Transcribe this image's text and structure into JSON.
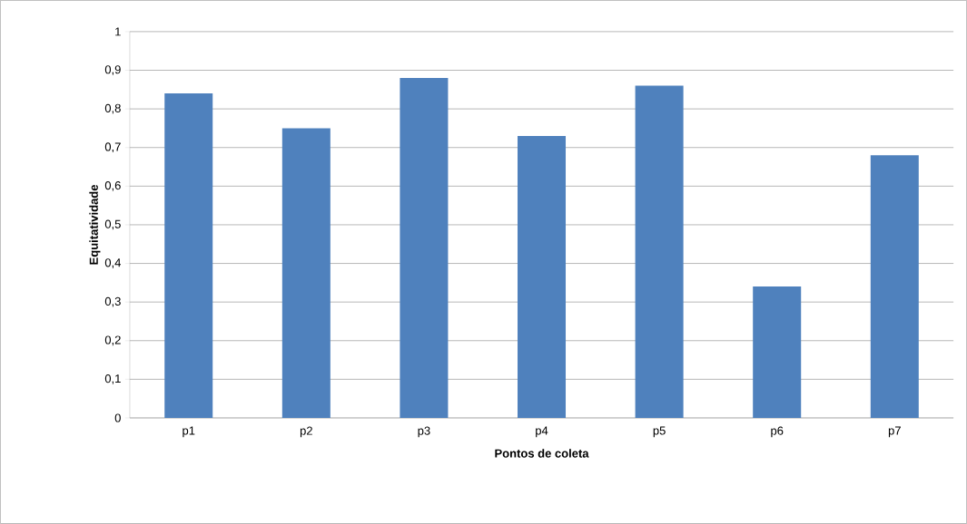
{
  "chart_data": {
    "type": "bar",
    "xlabel": "Pontos de coleta",
    "ylabel": "Equitatividade",
    "categories": [
      "p1",
      "p2",
      "p3",
      "p4",
      "p5",
      "p6",
      "p7"
    ],
    "values": [
      0.84,
      0.75,
      0.88,
      0.73,
      0.86,
      0.34,
      0.68
    ],
    "color": "#4f81bd",
    "ylim": [
      0,
      1
    ],
    "yticks": [
      0,
      {
        "value": 0.1,
        "label": "0,1"
      },
      {
        "value": 0.2,
        "label": "0,2"
      },
      {
        "value": 0.3,
        "label": "0,3"
      },
      {
        "value": 0.4,
        "label": "0,4"
      },
      {
        "value": 0.5,
        "label": "0,5"
      },
      {
        "value": 0.6,
        "label": "0,6"
      },
      {
        "value": 0.7,
        "label": "0,7"
      },
      {
        "value": 0.8,
        "label": "0,8"
      },
      {
        "value": 0.9,
        "label": "0,9"
      },
      1
    ],
    "grid": "y"
  }
}
